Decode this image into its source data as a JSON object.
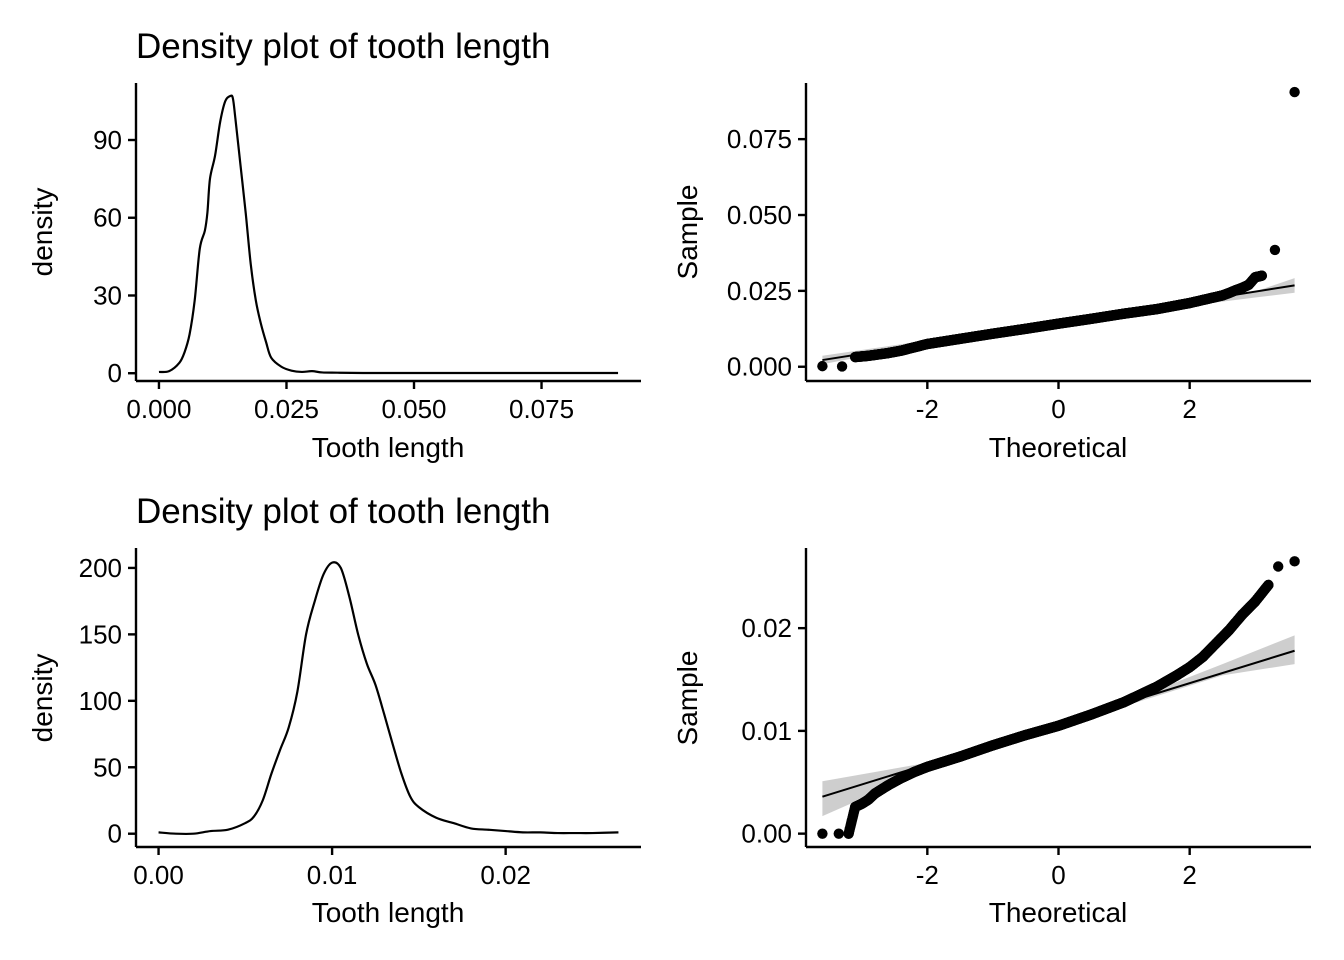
{
  "chart_data": [
    {
      "type": "line",
      "kind": "density",
      "title": "Density plot of tooth length",
      "xlabel": "Tooth length",
      "ylabel": "density",
      "xlim": [
        -0.0045,
        0.0945
      ],
      "ylim": [
        -3,
        112
      ],
      "xticks": [
        0.0,
        0.025,
        0.05,
        0.075
      ],
      "xtick_labels": [
        "0.000",
        "0.025",
        "0.050",
        "0.075"
      ],
      "yticks": [
        0,
        30,
        60,
        90
      ],
      "ytick_labels": [
        "0",
        "30",
        "60",
        "90"
      ],
      "grid": false,
      "x": [
        0.0,
        0.002,
        0.004,
        0.005,
        0.006,
        0.007,
        0.008,
        0.009,
        0.0095,
        0.01,
        0.011,
        0.012,
        0.013,
        0.014,
        0.0145,
        0.015,
        0.016,
        0.017,
        0.018,
        0.019,
        0.02,
        0.021,
        0.022,
        0.024,
        0.026,
        0.028,
        0.03,
        0.032,
        0.035,
        0.04,
        0.05,
        0.06,
        0.07,
        0.08,
        0.09
      ],
      "y": [
        0.5,
        0.8,
        4,
        8,
        15,
        28,
        48,
        55,
        62,
        75,
        84,
        97,
        105,
        107,
        106,
        98,
        80,
        62,
        42,
        28,
        19,
        12,
        6,
        2.5,
        1,
        0.5,
        0.8,
        0.3,
        0.2,
        0.1,
        0.1,
        0.1,
        0.1,
        0.1,
        0.1
      ]
    },
    {
      "type": "scatter",
      "kind": "qq",
      "title": "",
      "xlabel": "Theoretical",
      "ylabel": "Sample",
      "xlim": [
        -3.85,
        3.85
      ],
      "ylim": [
        -0.0047,
        0.0935
      ],
      "xticks": [
        -2,
        0,
        2
      ],
      "xtick_labels": [
        "-2",
        "0",
        "2"
      ],
      "yticks": [
        0.0,
        0.025,
        0.05,
        0.075
      ],
      "ytick_labels": [
        "0.000",
        "0.025",
        "0.050",
        "0.075"
      ],
      "grid": false,
      "n_points": 800,
      "reference_line": {
        "x": [
          -3.6,
          3.6
        ],
        "y": [
          0.0022,
          0.0268
        ]
      },
      "confidence_band": {
        "x": [
          -3.6,
          -2,
          0,
          2,
          3.0,
          3.6
        ],
        "upper": [
          0.0036,
          0.0087,
          0.0151,
          0.0212,
          0.0248,
          0.0292
        ],
        "lower": [
          0.0008,
          0.0075,
          0.0141,
          0.0201,
          0.0228,
          0.0244
        ]
      },
      "x_points": [
        -3.6,
        -3.3,
        -3.1,
        -3.0,
        -2.9,
        -2.8,
        -2.6,
        -2.4,
        -2.0,
        -1.5,
        -1.0,
        -0.5,
        0.0,
        0.5,
        1.0,
        1.5,
        2.0,
        2.3,
        2.5,
        2.6,
        2.7,
        2.8,
        2.9,
        3.0,
        3.1,
        3.3,
        3.6
      ],
      "y_points": [
        0.0002,
        0.0001,
        0.0032,
        0.0034,
        0.0036,
        0.0039,
        0.0045,
        0.0053,
        0.0075,
        0.0092,
        0.0109,
        0.0125,
        0.0142,
        0.0158,
        0.0175,
        0.019,
        0.021,
        0.0225,
        0.0235,
        0.0243,
        0.0252,
        0.026,
        0.027,
        0.0295,
        0.03,
        0.0385,
        0.0905
      ]
    },
    {
      "type": "line",
      "kind": "density",
      "title": "Density plot of tooth length",
      "xlabel": "Tooth length",
      "ylabel": "density",
      "xlim": [
        -0.0013,
        0.0278
      ],
      "ylim": [
        -10,
        215
      ],
      "xticks": [
        0.0,
        0.01,
        0.02
      ],
      "xtick_labels": [
        "0.00",
        "0.01",
        "0.02"
      ],
      "yticks": [
        0,
        50,
        100,
        150,
        200
      ],
      "ytick_labels": [
        "0",
        "50",
        "100",
        "150",
        "200"
      ],
      "grid": false,
      "x": [
        0.0,
        0.001,
        0.002,
        0.003,
        0.004,
        0.005,
        0.0055,
        0.006,
        0.0065,
        0.007,
        0.0075,
        0.008,
        0.0085,
        0.009,
        0.0095,
        0.01,
        0.0105,
        0.011,
        0.0115,
        0.012,
        0.0125,
        0.013,
        0.0135,
        0.014,
        0.0145,
        0.015,
        0.016,
        0.017,
        0.018,
        0.019,
        0.02,
        0.021,
        0.022,
        0.023,
        0.024,
        0.025,
        0.0265
      ],
      "y": [
        1,
        0,
        0,
        2,
        3,
        8,
        13,
        25,
        45,
        63,
        80,
        107,
        150,
        175,
        195,
        204,
        200,
        178,
        150,
        128,
        112,
        90,
        67,
        45,
        28,
        20,
        12,
        8,
        4,
        3,
        2,
        1,
        1,
        0.5,
        0.5,
        0.5,
        1
      ]
    },
    {
      "type": "scatter",
      "kind": "qq",
      "title": "",
      "xlabel": "Theoretical",
      "ylabel": "Sample",
      "xlim": [
        -3.85,
        3.85
      ],
      "ylim": [
        -0.0013,
        0.0278
      ],
      "xticks": [
        -2,
        0,
        2
      ],
      "xtick_labels": [
        "-2",
        "0",
        "2"
      ],
      "yticks": [
        0.0,
        0.01,
        0.02
      ],
      "ytick_labels": [
        "0.00",
        "0.01",
        "0.02"
      ],
      "grid": false,
      "n_points": 800,
      "reference_line": {
        "x": [
          -3.6,
          3.6
        ],
        "y": [
          0.0036,
          0.0178
        ]
      },
      "confidence_band": {
        "x": [
          -3.6,
          -2,
          0,
          1.5,
          2.5,
          3.6
        ],
        "upper": [
          0.0051,
          0.0069,
          0.0108,
          0.014,
          0.0165,
          0.0193
        ],
        "lower": [
          0.0017,
          0.0062,
          0.0104,
          0.0134,
          0.0154,
          0.0165
        ]
      },
      "x_points": [
        -3.6,
        -3.35,
        -3.2,
        -3.1,
        -3.0,
        -2.9,
        -2.8,
        -2.6,
        -2.4,
        -2.2,
        -2.0,
        -1.5,
        -1.0,
        -0.5,
        0.0,
        0.5,
        1.0,
        1.5,
        1.8,
        2.0,
        2.2,
        2.4,
        2.6,
        2.8,
        3.0,
        3.2,
        3.35,
        3.6
      ],
      "y_points": [
        0.0,
        0.0,
        0.0,
        0.0026,
        0.0029,
        0.0033,
        0.0039,
        0.0047,
        0.0054,
        0.006,
        0.0065,
        0.0075,
        0.0086,
        0.0096,
        0.0105,
        0.0116,
        0.0128,
        0.0143,
        0.0154,
        0.0162,
        0.0172,
        0.0185,
        0.0198,
        0.0213,
        0.0226,
        0.0242,
        0.026,
        0.0265
      ]
    }
  ]
}
